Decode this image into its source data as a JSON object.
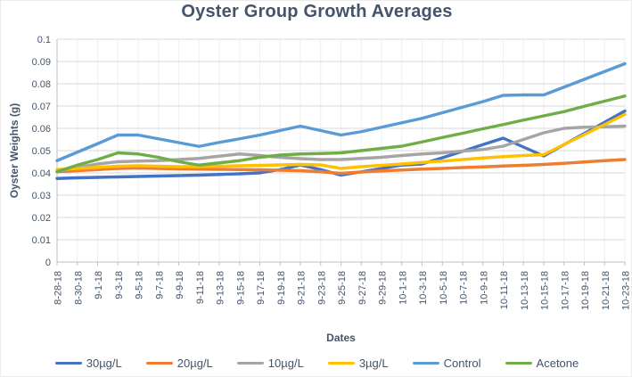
{
  "chart": {
    "title": "Oyster Group Growth Averages",
    "y_axis_title": "Oyster Weights (g)",
    "x_axis_title": "Dates",
    "colors": {
      "title_text": "#44546A",
      "axis_text": "#44546A",
      "gridline": "#D9D9D9",
      "vertical_gridline": "#EFEFF4",
      "axis_line": "#BFBFBF"
    },
    "y_tick_labels": [
      "0",
      "0.01",
      "0.02",
      "0.03",
      "0.04",
      "0.05",
      "0.06",
      "0.07",
      "0.08",
      "0.09",
      "0.1"
    ]
  },
  "chart_data": {
    "type": "line",
    "title": "Oyster Group Growth Averages",
    "xlabel": "Dates",
    "ylabel": "Oyster Weights (g)",
    "ylim": [
      0,
      0.1
    ],
    "y_tick_step": 0.01,
    "grid": true,
    "legend_position": "bottom",
    "categories": [
      "8-28-18",
      "8-30-18",
      "9-1-18",
      "9-3-18",
      "9-5-18",
      "9-7-18",
      "9-9-18",
      "9-11-18",
      "9-13-18",
      "9-15-18",
      "9-17-18",
      "9-19-18",
      "9-21-18",
      "9-23-18",
      "9-25-18",
      "9-27-18",
      "9-29-18",
      "10-1-18",
      "10-3-18",
      "10-5-18",
      "10-7-18",
      "10-9-18",
      "10-11-18",
      "10-13-18",
      "10-15-18",
      "10-17-18",
      "10-19-18",
      "10-21-18",
      "10-23-18"
    ],
    "series": [
      {
        "name": "30µg/L",
        "color": "#4472C4",
        "values": [
          0.0375,
          0.0378,
          0.038,
          0.0382,
          0.0384,
          0.0386,
          0.0388,
          0.039,
          0.0393,
          0.0396,
          0.04,
          0.0415,
          0.0435,
          0.0415,
          0.039,
          0.0405,
          0.042,
          0.0435,
          0.044,
          0.0468,
          0.0497,
          0.0527,
          0.0556,
          0.0516,
          0.0476,
          0.0527,
          0.0577,
          0.0627,
          0.0678
        ]
      },
      {
        "name": "20µg/L",
        "color": "#ED7D31",
        "values": [
          0.0405,
          0.041,
          0.0415,
          0.042,
          0.0422,
          0.042,
          0.0418,
          0.0417,
          0.0416,
          0.0415,
          0.0414,
          0.0412,
          0.041,
          0.0405,
          0.0398,
          0.0404,
          0.0409,
          0.0413,
          0.0417,
          0.042,
          0.0424,
          0.0427,
          0.0431,
          0.0434,
          0.0438,
          0.0443,
          0.0449,
          0.0455,
          0.046
        ]
      },
      {
        "name": "10µg/L",
        "color": "#A5A5A5",
        "values": [
          0.0405,
          0.0425,
          0.044,
          0.045,
          0.0453,
          0.0455,
          0.046,
          0.0465,
          0.0475,
          0.0485,
          0.0478,
          0.047,
          0.0464,
          0.046,
          0.046,
          0.0465,
          0.047,
          0.0478,
          0.0485,
          0.049,
          0.0498,
          0.0505,
          0.052,
          0.055,
          0.058,
          0.06,
          0.0605,
          0.0607,
          0.061
        ]
      },
      {
        "name": "3µg/L",
        "color": "#FFC000",
        "values": [
          0.0415,
          0.042,
          0.0425,
          0.043,
          0.0432,
          0.043,
          0.0428,
          0.0428,
          0.043,
          0.0432,
          0.0434,
          0.0436,
          0.0438,
          0.0436,
          0.042,
          0.0428,
          0.0434,
          0.044,
          0.0447,
          0.0453,
          0.046,
          0.0467,
          0.0473,
          0.0478,
          0.0482,
          0.0527,
          0.0572,
          0.0617,
          0.0663
        ]
      },
      {
        "name": "Control",
        "color": "#5B9BD5",
        "values": [
          0.0455,
          0.0493,
          0.0531,
          0.057,
          0.057,
          0.0553,
          0.0536,
          0.0519,
          0.0537,
          0.0553,
          0.057,
          0.059,
          0.061,
          0.059,
          0.057,
          0.0585,
          0.0605,
          0.0625,
          0.0645,
          0.067,
          0.0695,
          0.072,
          0.0748,
          0.075,
          0.075,
          0.0785,
          0.082,
          0.0855,
          0.089
        ]
      },
      {
        "name": "Acetone",
        "color": "#70AD47",
        "values": [
          0.0405,
          0.0435,
          0.046,
          0.049,
          0.0485,
          0.047,
          0.045,
          0.0435,
          0.0445,
          0.0455,
          0.047,
          0.048,
          0.0485,
          0.0487,
          0.049,
          0.05,
          0.051,
          0.052,
          0.0539,
          0.0559,
          0.0578,
          0.0598,
          0.0617,
          0.0637,
          0.0656,
          0.0675,
          0.0699,
          0.0722,
          0.0745
        ]
      }
    ]
  }
}
